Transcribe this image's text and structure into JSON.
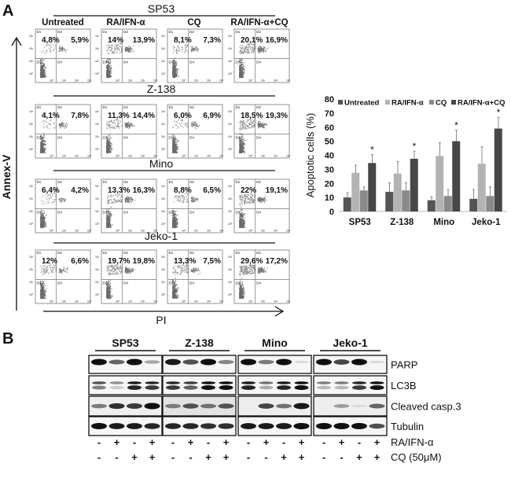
{
  "panel_a": {
    "label": "A",
    "y_axis_label": "Annex-V",
    "x_axis_label": "PI",
    "conditions": [
      "Untreated",
      "RA/IFN-α",
      "CQ",
      "RA/IFN-α+CQ"
    ],
    "quadrant_labels": [
      "D1",
      "D2",
      "D3",
      "D4"
    ],
    "axis_ticks": [
      "10⁰",
      "10¹",
      "10²",
      "10³"
    ],
    "cell_lines": [
      {
        "name": "SP53",
        "percents": [
          [
            "4,8%",
            "5,9%"
          ],
          [
            "14%",
            "13,9%"
          ],
          [
            "8,1%",
            "7,3%"
          ],
          [
            "20,1%",
            "16,9%"
          ]
        ]
      },
      {
        "name": "Z-138",
        "percents": [
          [
            "4,1%",
            "7,8%"
          ],
          [
            "11,3%",
            "14,4%"
          ],
          [
            "6,0%",
            "6,9%"
          ],
          [
            "18,5%",
            "19,3%"
          ]
        ]
      },
      {
        "name": "Mino",
        "percents": [
          [
            "6,4%",
            "4,2%"
          ],
          [
            "13,3%",
            "16,3%"
          ],
          [
            "8,8%",
            "6,5%"
          ],
          [
            "22%",
            "19,1%"
          ]
        ]
      },
      {
        "name": "Jeko-1",
        "percents": [
          [
            "12%",
            "6,6%"
          ],
          [
            "19,7%",
            "19,8%"
          ],
          [
            "13,3%",
            "7,5%"
          ],
          [
            "29,6%",
            "17,2%"
          ]
        ]
      }
    ]
  },
  "chart_data": {
    "type": "bar",
    "title": "",
    "xlabel": "",
    "ylabel": "Apoptotic cells (%)",
    "ylim": [
      0,
      80
    ],
    "yticks": [
      "0",
      "10",
      "20",
      "30",
      "40",
      "50",
      "60",
      "70",
      "80"
    ],
    "categories": [
      "SP53",
      "Z-138",
      "Mino",
      "Jeko-1"
    ],
    "legend_position": "top",
    "series": [
      {
        "name": "Untreated",
        "color": "#555555",
        "values": [
          10,
          14,
          8,
          9
        ],
        "errors": [
          3.5,
          6.5,
          2.5,
          6.5
        ]
      },
      {
        "name": "RA/IFN-α",
        "color": "#b3b3b3",
        "values": [
          27.5,
          27,
          39.5,
          34
        ],
        "errors": [
          5.5,
          8.5,
          9.5,
          12
        ]
      },
      {
        "name": "CQ",
        "color": "#8a8a8a",
        "values": [
          15,
          15,
          11,
          11
        ],
        "errors": [
          2.5,
          5.5,
          4.5,
          6.5
        ]
      },
      {
        "name": "RA/IFN-α+CQ",
        "color": "#474747",
        "values": [
          34.5,
          37.5,
          50,
          59
        ],
        "errors": [
          6,
          5.5,
          8,
          8
        ]
      }
    ],
    "significance_marker": "*"
  },
  "panel_b": {
    "label": "B",
    "cell_lines": [
      "SP53",
      "Z-138",
      "Mino",
      "Jeko-1"
    ],
    "proteins": [
      {
        "name": "PARP",
        "intensity": [
          [
            1,
            0.6,
            1,
            0.3
          ],
          [
            0.95,
            0.7,
            1,
            0.45
          ],
          [
            1,
            0.5,
            1,
            0.05
          ],
          [
            1,
            0.75,
            1,
            0.05
          ]
        ]
      },
      {
        "name": "LC3B",
        "intensity": [
          [
            0.7,
            0.4,
            0.95,
            0.9
          ],
          [
            0.9,
            0.8,
            1,
            1
          ],
          [
            0.95,
            0.55,
            0.95,
            1
          ],
          [
            0.5,
            0.5,
            0.9,
            1
          ]
        ]
      },
      {
        "name": "Cleaved casp.3",
        "intensity": [
          [
            0.5,
            0.85,
            0.8,
            1
          ],
          [
            0.5,
            0.7,
            0.55,
            0.7
          ],
          [
            0,
            0.75,
            0.55,
            0.95
          ],
          [
            0,
            0.35,
            0.05,
            0.6
          ]
        ]
      },
      {
        "name": "Tubulin",
        "intensity": [
          [
            1,
            0.95,
            0.95,
            0.9
          ],
          [
            0.9,
            0.9,
            0.85,
            0.85
          ],
          [
            0.95,
            0.95,
            0.95,
            1
          ],
          [
            1,
            1,
            1,
            0.7
          ]
        ]
      }
    ],
    "treatments": [
      {
        "name": "RA/IFN-α",
        "signs": [
          "-",
          "+",
          "-",
          "+"
        ]
      },
      {
        "name": "CQ (50μM)",
        "signs": [
          "-",
          "-",
          "+",
          "+"
        ]
      }
    ]
  }
}
